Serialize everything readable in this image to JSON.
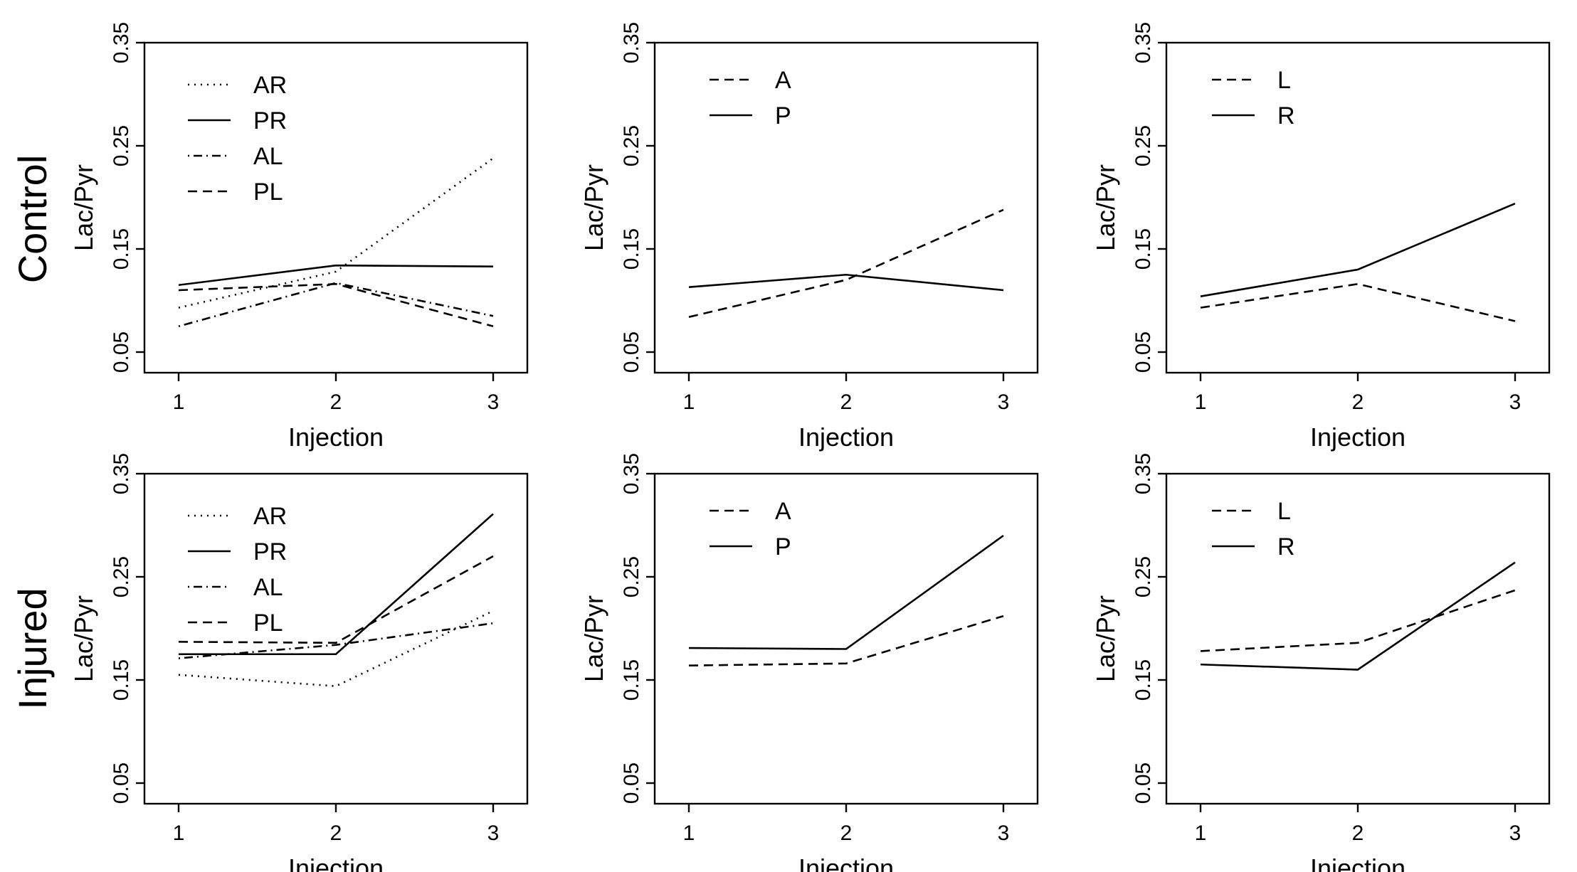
{
  "rows": [
    {
      "label": "Control"
    },
    {
      "label": "Injured"
    }
  ],
  "styles": {
    "AR": "dotted",
    "PR": "solid",
    "AL": "dotdash",
    "PL": "dashed",
    "A": "dashed",
    "P": "solid",
    "L": "dashed",
    "R": "solid"
  },
  "chart_data": [
    {
      "type": "line",
      "row": "Control",
      "col": 0,
      "xlabel": "Injection",
      "ylabel": "Lac/Pyr",
      "x": [
        1,
        2,
        3
      ],
      "xticks": [
        "1",
        "2",
        "3"
      ],
      "yticks": [
        "0.05",
        "0.15",
        "0.25",
        "0.35"
      ],
      "ylim": [
        0.03,
        0.35
      ],
      "series": [
        {
          "name": "AR",
          "values": [
            0.093,
            0.128,
            0.238
          ]
        },
        {
          "name": "PR",
          "values": [
            0.115,
            0.134,
            0.133
          ]
        },
        {
          "name": "AL",
          "values": [
            0.075,
            0.117,
            0.085
          ]
        },
        {
          "name": "PL",
          "values": [
            0.11,
            0.116,
            0.075
          ]
        }
      ]
    },
    {
      "type": "line",
      "row": "Control",
      "col": 1,
      "xlabel": "Injection",
      "ylabel": "Lac/Pyr",
      "x": [
        1,
        2,
        3
      ],
      "xticks": [
        "1",
        "2",
        "3"
      ],
      "yticks": [
        "0.05",
        "0.15",
        "0.25",
        "0.35"
      ],
      "ylim": [
        0.03,
        0.35
      ],
      "series": [
        {
          "name": "A",
          "values": [
            0.084,
            0.12,
            0.188
          ]
        },
        {
          "name": "P",
          "values": [
            0.113,
            0.125,
            0.11
          ]
        }
      ]
    },
    {
      "type": "line",
      "row": "Control",
      "col": 2,
      "xlabel": "Injection",
      "ylabel": "Lac/Pyr",
      "x": [
        1,
        2,
        3
      ],
      "xticks": [
        "1",
        "2",
        "3"
      ],
      "yticks": [
        "0.05",
        "0.15",
        "0.25",
        "0.35"
      ],
      "ylim": [
        0.03,
        0.35
      ],
      "series": [
        {
          "name": "L",
          "values": [
            0.093,
            0.116,
            0.08
          ]
        },
        {
          "name": "R",
          "values": [
            0.104,
            0.13,
            0.194
          ]
        }
      ]
    },
    {
      "type": "line",
      "row": "Injured",
      "col": 0,
      "xlabel": "Injection",
      "ylabel": "Lac/Pyr",
      "x": [
        1,
        2,
        3
      ],
      "xticks": [
        "1",
        "2",
        "3"
      ],
      "yticks": [
        "0.05",
        "0.15",
        "0.25",
        "0.35"
      ],
      "ylim": [
        0.03,
        0.35
      ],
      "series": [
        {
          "name": "AR",
          "values": [
            0.155,
            0.144,
            0.217
          ]
        },
        {
          "name": "PR",
          "values": [
            0.175,
            0.175,
            0.311
          ]
        },
        {
          "name": "AL",
          "values": [
            0.171,
            0.184,
            0.205
          ]
        },
        {
          "name": "PL",
          "values": [
            0.187,
            0.186,
            0.27
          ]
        }
      ]
    },
    {
      "type": "line",
      "row": "Injured",
      "col": 1,
      "xlabel": "Injection",
      "ylabel": "Lac/Pyr",
      "x": [
        1,
        2,
        3
      ],
      "xticks": [
        "1",
        "2",
        "3"
      ],
      "yticks": [
        "0.05",
        "0.15",
        "0.25",
        "0.35"
      ],
      "ylim": [
        0.03,
        0.35
      ],
      "series": [
        {
          "name": "A",
          "values": [
            0.164,
            0.166,
            0.212
          ]
        },
        {
          "name": "P",
          "values": [
            0.181,
            0.18,
            0.29
          ]
        }
      ]
    },
    {
      "type": "line",
      "row": "Injured",
      "col": 2,
      "xlabel": "Injection",
      "ylabel": "Lac/Pyr",
      "x": [
        1,
        2,
        3
      ],
      "xticks": [
        "1",
        "2",
        "3"
      ],
      "yticks": [
        "0.05",
        "0.15",
        "0.25",
        "0.35"
      ],
      "ylim": [
        0.03,
        0.35
      ],
      "series": [
        {
          "name": "L",
          "values": [
            0.178,
            0.186,
            0.237
          ]
        },
        {
          "name": "R",
          "values": [
            0.165,
            0.16,
            0.264
          ]
        }
      ]
    }
  ]
}
